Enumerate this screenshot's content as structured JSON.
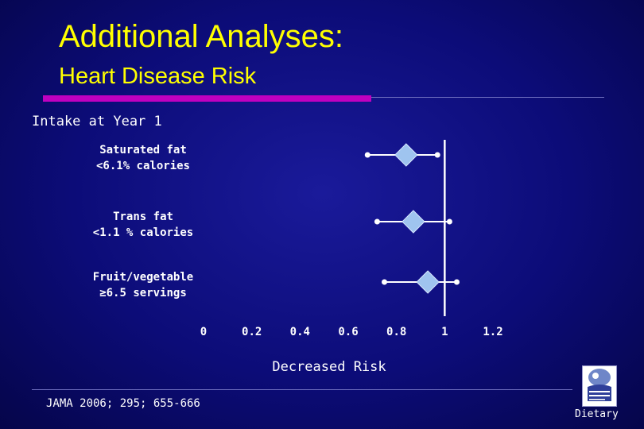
{
  "slide": {
    "title": "Additional Analyses:",
    "subtitle": "Heart Disease Risk",
    "section_label": "Intake at Year 1",
    "citation": "JAMA 2006; 295; 655-666",
    "section_tag": "Dietary"
  },
  "colors": {
    "title": "#ffff00",
    "accent_rule": "#c000c0",
    "marker_fill": "#9fc4ef",
    "ci_line": "#ffffff"
  },
  "chart_data": {
    "type": "forest",
    "xlabel": "Decreased Risk",
    "xlim": [
      0,
      1.2
    ],
    "x_ticks": [
      "0",
      "0.2",
      "0.4",
      "0.6",
      "0.8",
      "1",
      "1.2"
    ],
    "reference_line": 1,
    "rows": [
      {
        "label_lines": [
          "Saturated fat",
          "<6.1% calories"
        ],
        "estimate": 0.84,
        "ci_low": 0.68,
        "ci_high": 0.97
      },
      {
        "label_lines": [
          "Trans fat",
          "<1.1 % calories"
        ],
        "estimate": 0.87,
        "ci_low": 0.72,
        "ci_high": 1.02
      },
      {
        "label_lines": [
          "Fruit/vegetable",
          "≥6.5 servings"
        ],
        "estimate": 0.93,
        "ci_low": 0.75,
        "ci_high": 1.05
      }
    ]
  }
}
